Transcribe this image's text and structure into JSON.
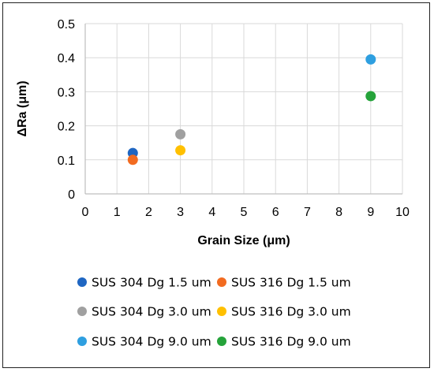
{
  "chart_data": {
    "type": "scatter",
    "title": "",
    "xlabel": "Grain Size (μm)",
    "ylabel": "ΔRa (μm)",
    "xlim": [
      0,
      10
    ],
    "ylim": [
      0,
      0.5
    ],
    "x_ticks": [
      "0",
      "1",
      "2",
      "3",
      "4",
      "5",
      "6",
      "7",
      "8",
      "9",
      "10"
    ],
    "y_ticks": [
      "0",
      "0.1",
      "0.2",
      "0.3",
      "0.4",
      "0.5"
    ],
    "grid": true,
    "legend_position": "bottom",
    "series": [
      {
        "name": "SUS 304 Dg 1.5 um",
        "color": "#1f66c2",
        "points": [
          {
            "x": 1.5,
            "y": 0.12
          }
        ]
      },
      {
        "name": "SUS 316 Dg 1.5 um",
        "color": "#f26b20",
        "points": [
          {
            "x": 1.5,
            "y": 0.1
          }
        ]
      },
      {
        "name": "SUS 304 Dg 3.0 um",
        "color": "#a0a0a0",
        "points": [
          {
            "x": 3.0,
            "y": 0.175
          }
        ]
      },
      {
        "name": "SUS 316 Dg 3.0 um",
        "color": "#ffc000",
        "points": [
          {
            "x": 3.0,
            "y": 0.128
          }
        ]
      },
      {
        "name": "SUS 304 Dg 9.0 um",
        "color": "#2e9fe0",
        "points": [
          {
            "x": 9.0,
            "y": 0.395
          }
        ]
      },
      {
        "name": "SUS 316 Dg 9.0 um",
        "color": "#25a33a",
        "points": [
          {
            "x": 9.0,
            "y": 0.287
          }
        ]
      }
    ]
  }
}
